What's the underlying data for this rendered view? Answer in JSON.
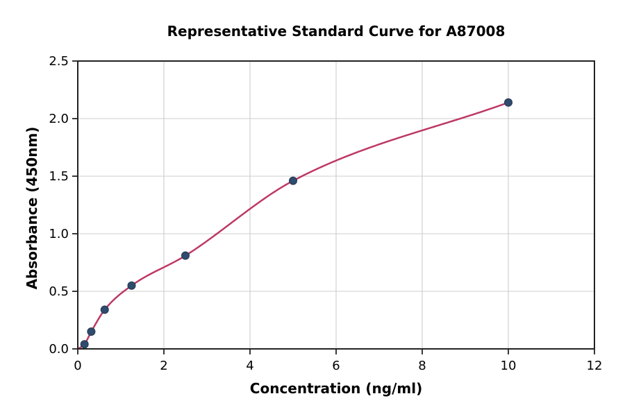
{
  "figure": {
    "background": "#ffffff"
  },
  "chart_data": {
    "type": "scatter",
    "title": "Representative Standard Curve for A87008",
    "xlabel": "Concentration (ng/ml)",
    "ylabel": "Absorbance (450nm)",
    "xlim": [
      0,
      12
    ],
    "ylim": [
      0,
      2.5
    ],
    "x_ticks": [
      0,
      2,
      4,
      6,
      8,
      10,
      12
    ],
    "y_ticks": [
      0,
      0.5,
      1,
      1.5,
      2,
      2.5
    ],
    "grid": true,
    "legend": false,
    "points": [
      {
        "x": 0.156,
        "y": 0.04
      },
      {
        "x": 0.313,
        "y": 0.15
      },
      {
        "x": 0.625,
        "y": 0.34
      },
      {
        "x": 1.25,
        "y": 0.55
      },
      {
        "x": 2.5,
        "y": 0.81
      },
      {
        "x": 5,
        "y": 1.46
      },
      {
        "x": 10,
        "y": 2.14
      }
    ],
    "fit_curve": {
      "style": "smooth-through-points",
      "start": {
        "x": 0,
        "y": 0
      }
    },
    "colors": {
      "point": "#2f4b6e",
      "point_edge": "#24384f",
      "curve": "#bd3866",
      "grid": "#cccccc",
      "axis": "#222222",
      "text": "#000000"
    }
  }
}
